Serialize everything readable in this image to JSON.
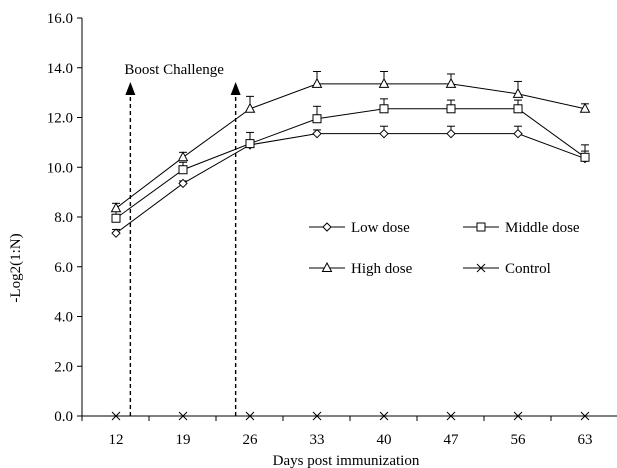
{
  "chart_data": {
    "type": "line",
    "title": "",
    "xlabel": "Days post immunization",
    "ylabel": "-Log2(1:N)",
    "categories": [
      "12",
      "19",
      "26",
      "33",
      "40",
      "47",
      "56",
      "63"
    ],
    "ylim": [
      0,
      16
    ],
    "yticks": [
      "0.0",
      "2.0",
      "4.0",
      "6.0",
      "8.0",
      "10.0",
      "12.0",
      "14.0",
      "16.0"
    ],
    "grid": false,
    "legend_position": "center-right",
    "series": [
      {
        "name": "Low dose",
        "marker": "diamond",
        "values": [
          7.35,
          9.35,
          10.9,
          11.35,
          11.35,
          11.35,
          11.35,
          10.35
        ],
        "errors": [
          0.15,
          0.1,
          0.15,
          0.15,
          0.3,
          0.3,
          0.3,
          0.3
        ]
      },
      {
        "name": "Middle dose",
        "marker": "square",
        "values": [
          7.95,
          9.9,
          10.95,
          11.95,
          12.35,
          12.35,
          12.35,
          10.4
        ],
        "errors": [
          0.3,
          0.3,
          0.45,
          0.5,
          0.4,
          0.35,
          0.35,
          0.5
        ]
      },
      {
        "name": "High dose",
        "marker": "triangle",
        "values": [
          8.35,
          10.4,
          12.35,
          13.35,
          13.35,
          13.35,
          12.95,
          12.35
        ],
        "errors": [
          0.2,
          0.2,
          0.5,
          0.5,
          0.5,
          0.4,
          0.5,
          0.2
        ]
      },
      {
        "name": "Control",
        "marker": "x",
        "values": [
          0,
          0,
          0,
          0,
          0,
          0,
          0,
          0
        ]
      }
    ],
    "annotations": [
      {
        "text": "Boost Challenge",
        "x_day": 13.5
      },
      {
        "text": "",
        "x_day": 24.5
      }
    ]
  }
}
